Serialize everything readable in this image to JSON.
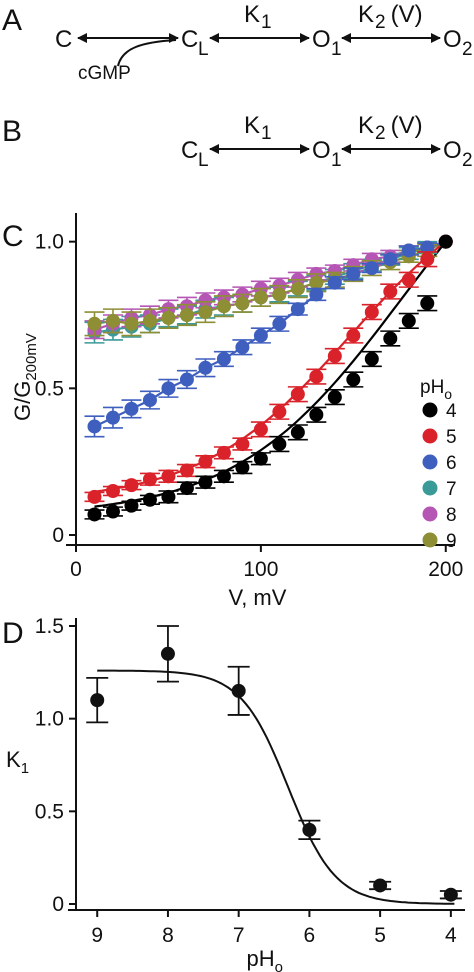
{
  "panels": {
    "A": {
      "letter": "A",
      "states": [
        "C",
        "C",
        "O",
        "O"
      ],
      "state_subscripts": [
        "",
        "L",
        "1",
        "2"
      ],
      "rates": [
        "K",
        "K"
      ],
      "rate_subscripts": [
        "1",
        "2"
      ],
      "rate2_suffix": " (V)",
      "ligand": "cGMP"
    },
    "B": {
      "letter": "B",
      "states": [
        "C",
        "O",
        "O"
      ],
      "state_subscripts": [
        "L",
        "1",
        "2"
      ],
      "rates": [
        "K",
        "K"
      ],
      "rate_subscripts": [
        "1",
        "2"
      ],
      "rate2_suffix": " (V)"
    },
    "C": {
      "letter": "C"
    },
    "D": {
      "letter": "D"
    }
  },
  "chart_data": [
    {
      "panel": "C",
      "type": "scatter",
      "xlabel": "V, mV",
      "ylabel_main": "G/G",
      "ylabel_sub": "200mV",
      "xlim": [
        0,
        205
      ],
      "ylim": [
        0,
        1.05
      ],
      "xticks": [
        0,
        100,
        200
      ],
      "yticks": [
        0,
        0.5,
        1.0
      ],
      "ytick_labels": [
        "0",
        "0.5",
        "1.0"
      ],
      "legend_title": "pH",
      "legend_title_sub": "o",
      "x": [
        10,
        20,
        30,
        40,
        50,
        60,
        70,
        80,
        90,
        100,
        110,
        120,
        130,
        140,
        150,
        160,
        170,
        180,
        190,
        200
      ],
      "series": [
        {
          "name": "4",
          "color": "#000000",
          "values": [
            0.07,
            0.08,
            0.1,
            0.12,
            0.13,
            0.16,
            0.18,
            0.2,
            0.23,
            0.26,
            0.31,
            0.35,
            0.41,
            0.47,
            0.53,
            0.6,
            0.67,
            0.73,
            0.79,
            1.0
          ],
          "errors": [
            0.015,
            0.015,
            0.015,
            0.015,
            0.02,
            0.02,
            0.02,
            0.02,
            0.02,
            0.02,
            0.025,
            0.025,
            0.025,
            0.025,
            0.025,
            0.025,
            0.025,
            0.025,
            0.025,
            0.0
          ],
          "fit_y0": 0.09,
          "fit_k": 0.0225,
          "fit_x0": 176
        },
        {
          "name": "5",
          "color": "#d9222a",
          "values": [
            0.13,
            0.15,
            0.17,
            0.19,
            0.2,
            0.22,
            0.25,
            0.28,
            0.31,
            0.36,
            0.42,
            0.48,
            0.54,
            0.61,
            0.68,
            0.76,
            0.83,
            0.87,
            0.94,
            1.0
          ],
          "errors": [
            0.015,
            0.015,
            0.015,
            0.02,
            0.02,
            0.02,
            0.02,
            0.02,
            0.02,
            0.025,
            0.025,
            0.025,
            0.025,
            0.025,
            0.025,
            0.025,
            0.025,
            0.025,
            0.025,
            0.0
          ],
          "fit_y0": 0.14,
          "fit_k": 0.025,
          "fit_x0": 148
        },
        {
          "name": "6",
          "color": "#3f5fbf",
          "values": [
            0.37,
            0.4,
            0.43,
            0.46,
            0.5,
            0.53,
            0.57,
            0.6,
            0.64,
            0.68,
            0.72,
            0.77,
            0.82,
            0.86,
            0.89,
            0.91,
            0.94,
            0.97,
            0.98,
            1.0
          ],
          "errors": [
            0.035,
            0.035,
            0.03,
            0.03,
            0.03,
            0.03,
            0.03,
            0.025,
            0.025,
            0.025,
            0.025,
            0.02,
            0.02,
            0.02,
            0.02,
            0.015,
            0.015,
            0.015,
            0.015,
            0.0
          ]
        },
        {
          "name": "7",
          "color": "#3a9a98",
          "values": [
            0.69,
            0.7,
            0.71,
            0.72,
            0.74,
            0.75,
            0.77,
            0.78,
            0.79,
            0.81,
            0.82,
            0.84,
            0.86,
            0.88,
            0.9,
            0.92,
            0.94,
            0.96,
            0.98,
            1.0
          ],
          "errors": [
            0.035,
            0.035,
            0.035,
            0.03,
            0.03,
            0.03,
            0.03,
            0.03,
            0.03,
            0.03,
            0.025,
            0.025,
            0.025,
            0.025,
            0.025,
            0.02,
            0.02,
            0.02,
            0.02,
            0.0
          ]
        },
        {
          "name": "8",
          "color": "#b556b5",
          "values": [
            0.7,
            0.72,
            0.74,
            0.75,
            0.77,
            0.78,
            0.8,
            0.81,
            0.82,
            0.84,
            0.85,
            0.87,
            0.89,
            0.9,
            0.92,
            0.94,
            0.95,
            0.97,
            0.98,
            1.0
          ],
          "errors": [
            0.03,
            0.03,
            0.03,
            0.03,
            0.03,
            0.03,
            0.025,
            0.025,
            0.025,
            0.025,
            0.025,
            0.025,
            0.02,
            0.02,
            0.02,
            0.02,
            0.02,
            0.015,
            0.015,
            0.0
          ]
        },
        {
          "name": "9",
          "color": "#8e8e34",
          "values": [
            0.72,
            0.73,
            0.72,
            0.73,
            0.74,
            0.75,
            0.76,
            0.78,
            0.79,
            0.81,
            0.82,
            0.84,
            0.86,
            0.87,
            0.89,
            0.91,
            0.93,
            0.95,
            0.97,
            1.0
          ],
          "errors": [
            0.04,
            0.04,
            0.04,
            0.04,
            0.035,
            0.035,
            0.035,
            0.035,
            0.03,
            0.03,
            0.03,
            0.03,
            0.03,
            0.025,
            0.025,
            0.025,
            0.025,
            0.02,
            0.02,
            0.0
          ]
        }
      ]
    },
    {
      "panel": "D",
      "type": "scatter",
      "xlabel": "pH",
      "xlabel_sub": "o",
      "ylabel": "K",
      "ylabel_sub": "1",
      "x_reversed": true,
      "xlim": [
        9.3,
        3.8
      ],
      "ylim": [
        0,
        1.5
      ],
      "xticks": [
        9,
        8,
        7,
        6,
        5,
        4
      ],
      "yticks": [
        0,
        0.5,
        1.0,
        1.5
      ],
      "ytick_labels": [
        "0",
        "0.5",
        "1.0",
        "1.5"
      ],
      "x": [
        9,
        8,
        7,
        6,
        5,
        4
      ],
      "values": [
        1.1,
        1.35,
        1.15,
        0.4,
        0.1,
        0.05
      ],
      "errors": [
        0.12,
        0.15,
        0.13,
        0.05,
        0.02,
        0.02
      ],
      "fit": {
        "top": 1.26,
        "bottom": 0.0,
        "pKa": 6.3,
        "slope": 1.3
      }
    }
  ]
}
